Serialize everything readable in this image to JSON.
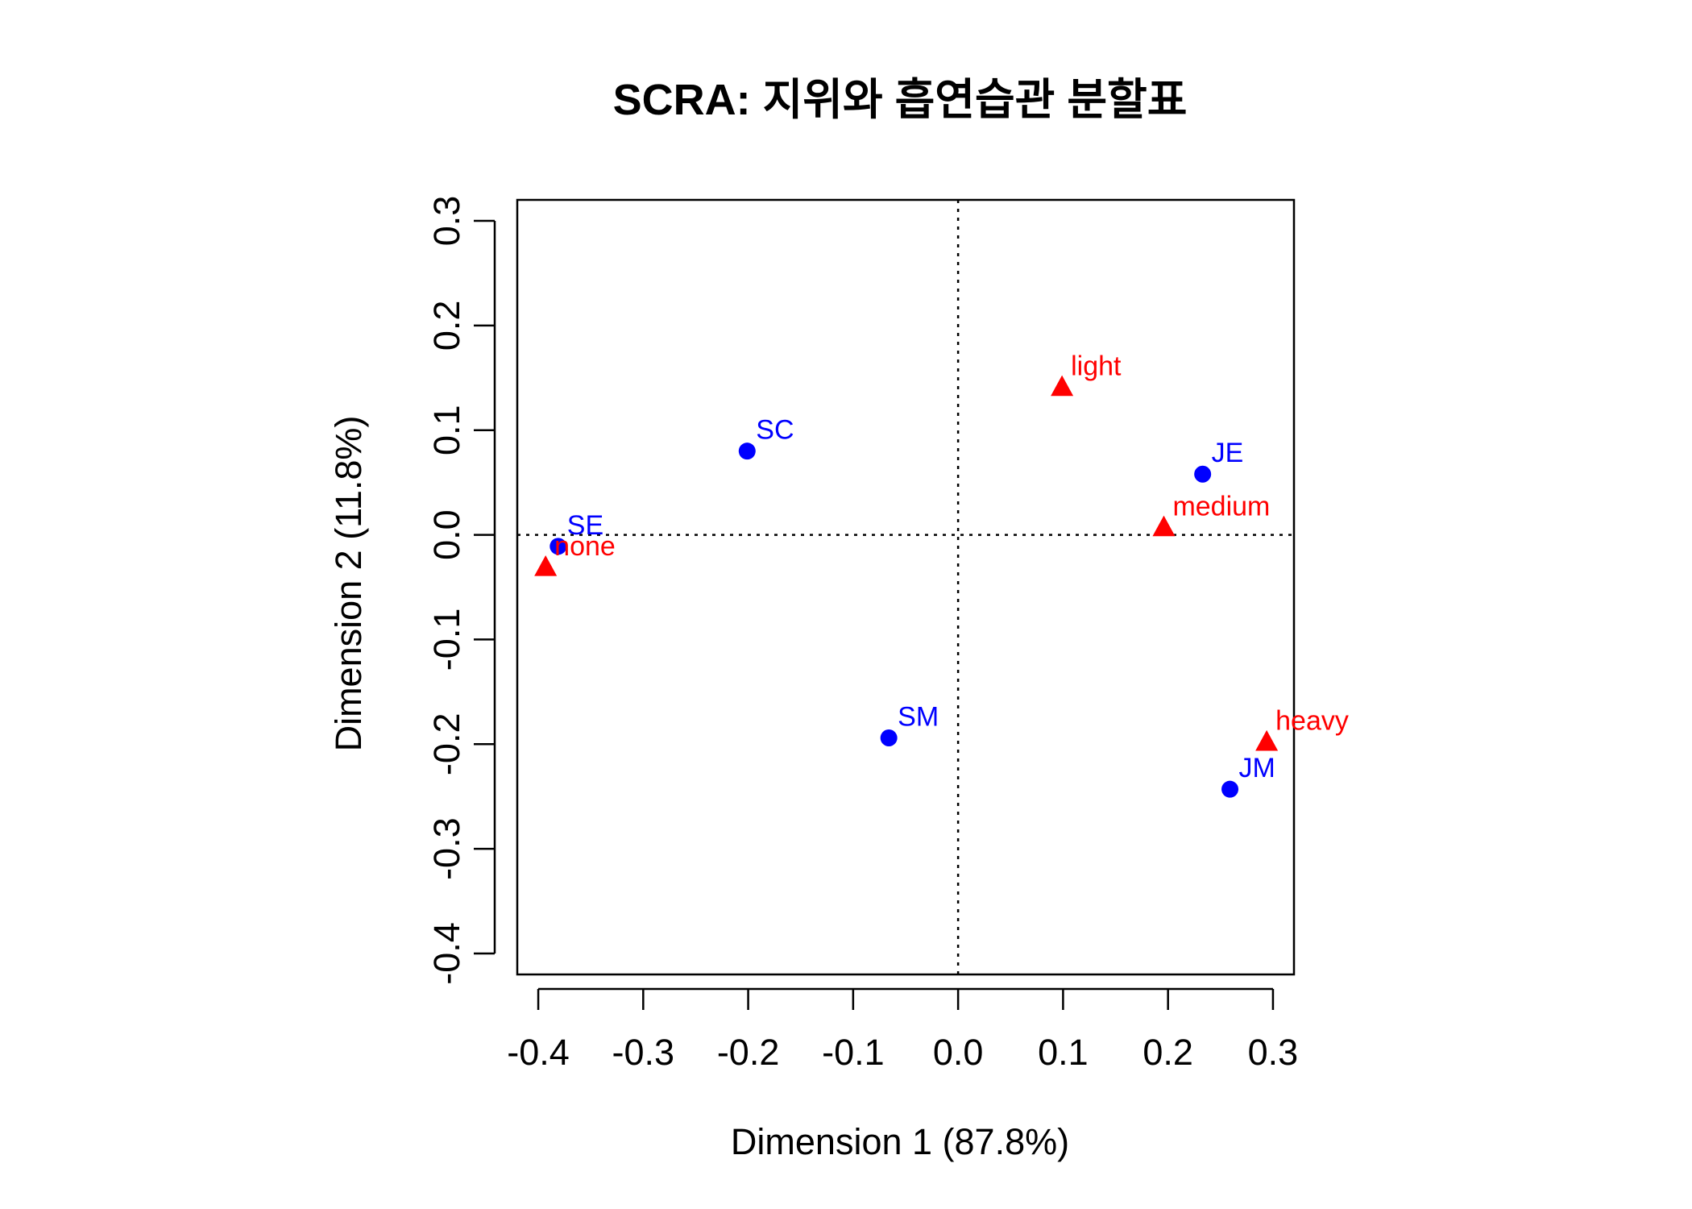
{
  "chart_data": {
    "type": "scatter",
    "title": "SCRA: 지위와 흡연습관 분할표",
    "xlabel": "Dimension 1 (87.8%)",
    "ylabel": "Dimension 2 (11.8%)",
    "xlim": [
      -0.42,
      0.32
    ],
    "ylim": [
      -0.42,
      0.32
    ],
    "xticks": [
      "-0.4",
      "-0.3",
      "-0.2",
      "-0.1",
      "0.0",
      "0.1",
      "0.2",
      "0.3"
    ],
    "yticks": [
      "-0.4",
      "-0.3",
      "-0.2",
      "-0.1",
      "0.0",
      "0.1",
      "0.2",
      "0.3"
    ],
    "reference_lines": {
      "x": 0,
      "y": 0,
      "style": "dotted"
    },
    "grid": false,
    "legend": "none",
    "series": [
      {
        "marker": "circle",
        "color": "#0000ff",
        "points": [
          {
            "label": "SE",
            "x": -0.381,
            "y": -0.011
          },
          {
            "label": "SC",
            "x": -0.201,
            "y": 0.08
          },
          {
            "label": "SM",
            "x": -0.066,
            "y": -0.194
          },
          {
            "label": "JE",
            "x": 0.233,
            "y": 0.058
          },
          {
            "label": "JM",
            "x": 0.259,
            "y": -0.243
          }
        ]
      },
      {
        "marker": "triangle",
        "color": "#ff0000",
        "points": [
          {
            "label": "none",
            "x": -0.393,
            "y": -0.031
          },
          {
            "label": "light",
            "x": 0.099,
            "y": 0.141
          },
          {
            "label": "medium",
            "x": 0.196,
            "y": 0.007
          },
          {
            "label": "heavy",
            "x": 0.294,
            "y": -0.198
          }
        ]
      }
    ]
  }
}
